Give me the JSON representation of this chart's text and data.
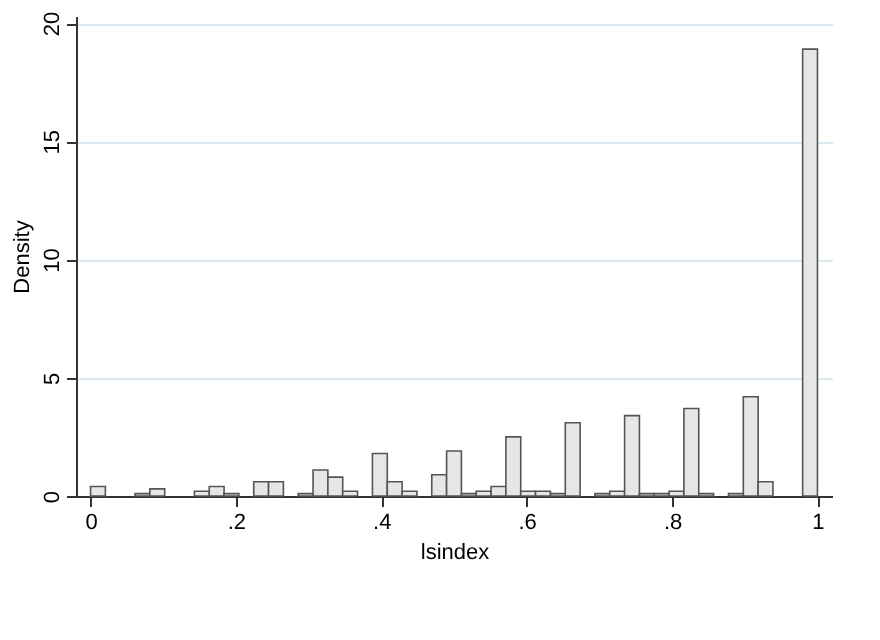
{
  "chart_data": {
    "type": "histogram",
    "xlabel": "lsindex",
    "ylabel": "Density",
    "color": "#e6e6e6",
    "bins": [
      0,
      0.0204,
      0.0408,
      0.0612,
      0.0816,
      0.102,
      0.1224,
      0.1429,
      0.1633,
      0.1837,
      0.2041,
      0.2245,
      0.2449,
      0.2653,
      0.2857,
      0.3061,
      0.3265,
      0.3469,
      0.3673,
      0.3878,
      0.4082,
      0.4286,
      0.449,
      0.4694,
      0.4898,
      0.5102,
      0.5306,
      0.551,
      0.5714,
      0.5918,
      0.6122,
      0.6327,
      0.6531,
      0.6735,
      0.6939,
      0.7143,
      0.7347,
      0.7551,
      0.7755,
      0.7959,
      0.8163,
      0.8367,
      0.8571,
      0.8776,
      0.898,
      0.9184,
      0.9388,
      0.9592,
      0.9796,
      1
    ],
    "values": [
      0.4,
      null,
      null,
      0.1,
      0.3,
      null,
      null,
      0.2,
      0.4,
      0.1,
      null,
      0.6,
      0.6,
      null,
      0.1,
      1.1,
      0.8,
      0.2,
      null,
      1.8,
      0.6,
      0.2,
      null,
      0.9,
      1.9,
      0.1,
      0.2,
      0.4,
      2.5,
      0.2,
      0.2,
      0.1,
      3.1,
      null,
      0.1,
      0.2,
      3.4,
      0.1,
      0.1,
      0.2,
      3.7,
      0.1,
      null,
      0.1,
      4.2,
      0.6,
      null,
      null,
      18.9
    ],
    "xlim": [
      -0.02,
      1.02
    ],
    "xticks": [
      {
        "value": 0,
        "label": "0"
      },
      {
        "value": 0.2,
        "label": ".2"
      },
      {
        "value": 0.4,
        "label": ".4"
      },
      {
        "value": 0.6,
        "label": ".6"
      },
      {
        "value": 0.8,
        "label": ".8"
      },
      {
        "value": 1,
        "label": "1"
      }
    ],
    "ylim": [
      0,
      20.3
    ],
    "yticks": [
      0,
      5,
      10,
      15,
      20
    ],
    "grid": "y"
  }
}
